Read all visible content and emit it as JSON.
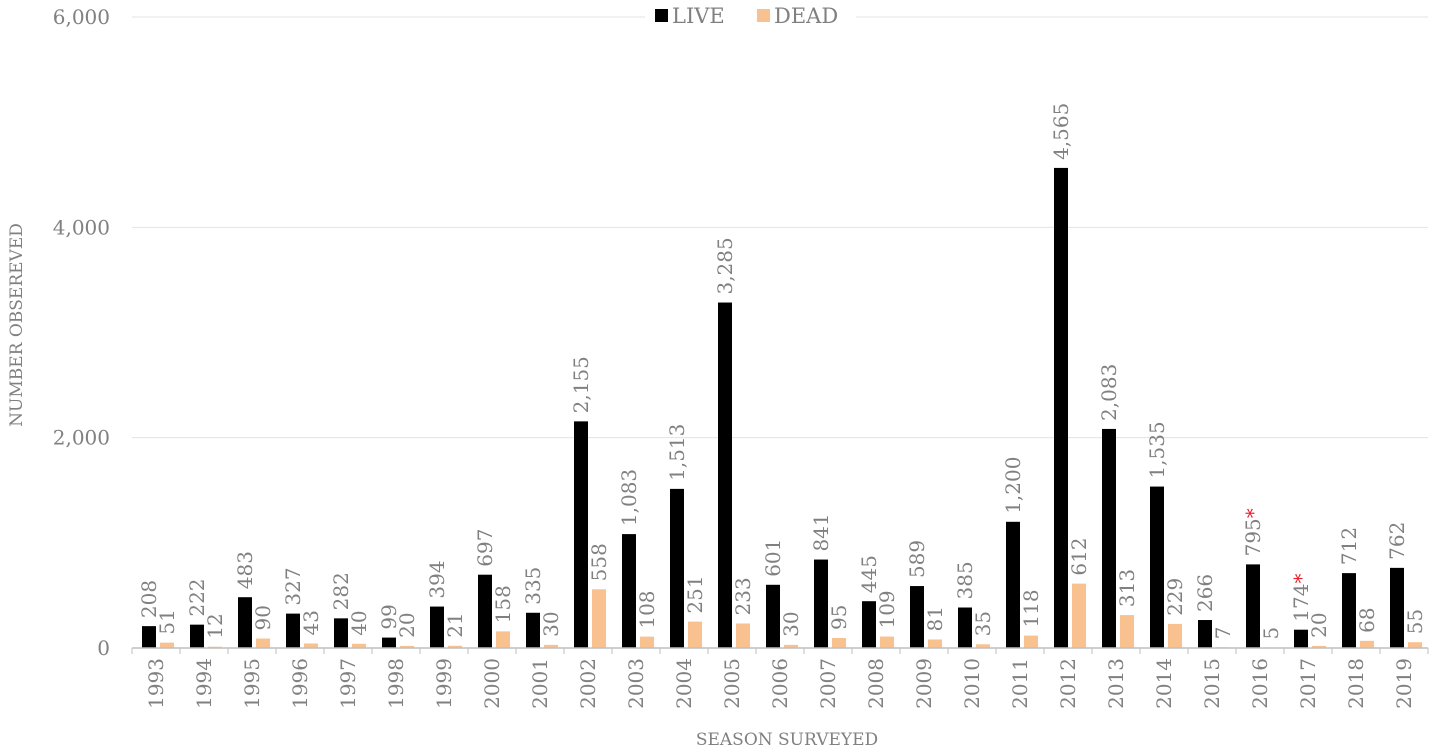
{
  "chart_data": {
    "type": "bar",
    "categories": [
      "1993",
      "1994",
      "1995",
      "1996",
      "1997",
      "1998",
      "1999",
      "2000",
      "2001",
      "2002",
      "2003",
      "2004",
      "2005",
      "2006",
      "2007",
      "2008",
      "2009",
      "2010",
      "2011",
      "2012",
      "2013",
      "2014",
      "2015",
      "2016",
      "2017",
      "2018",
      "2019"
    ],
    "series": [
      {
        "name": "LIVE",
        "color": "#000000",
        "values": [
          208,
          222,
          483,
          327,
          282,
          99,
          394,
          697,
          335,
          2155,
          1083,
          1513,
          3285,
          601,
          841,
          445,
          589,
          385,
          1200,
          4565,
          2083,
          1535,
          266,
          795,
          174,
          712,
          762
        ],
        "labels": [
          "208",
          "222",
          "483",
          "327",
          "282",
          "99",
          "394",
          "697",
          "335",
          "2,155",
          "1,083",
          "1,513",
          "3,285",
          "601",
          "841",
          "445",
          "589",
          "385",
          "1,200",
          "4,565",
          "2,083",
          "1,535",
          "266",
          "795",
          "174",
          "712",
          "762"
        ]
      },
      {
        "name": "DEAD",
        "color": "#F8C18F",
        "values": [
          51,
          12,
          90,
          43,
          40,
          20,
          21,
          158,
          30,
          558,
          108,
          251,
          233,
          30,
          95,
          109,
          81,
          35,
          118,
          612,
          313,
          229,
          7,
          5,
          20,
          68,
          55
        ],
        "labels": [
          "51",
          "12",
          "90",
          "43",
          "40",
          "20",
          "21",
          "158",
          "30",
          "558",
          "108",
          "251",
          "233",
          "30",
          "95",
          "109",
          "81",
          "35",
          "118",
          "612",
          "313",
          "229",
          "7",
          "5",
          "20",
          "68",
          "55"
        ]
      }
    ],
    "asterisk_categories": [
      "2016",
      "2017"
    ],
    "asterisk_symbol": "*",
    "asterisk_color": "#E8202A",
    "xlabel": "SEASON SURVEYED",
    "ylabel": "NUMBER OBSEREVED",
    "ylim": [
      0,
      6000
    ],
    "yticks": [
      0,
      2000,
      4000,
      6000
    ],
    "ytick_labels": [
      "0",
      "2,000",
      "4,000",
      "6,000"
    ],
    "grid": true,
    "legend_position": "top-center"
  }
}
